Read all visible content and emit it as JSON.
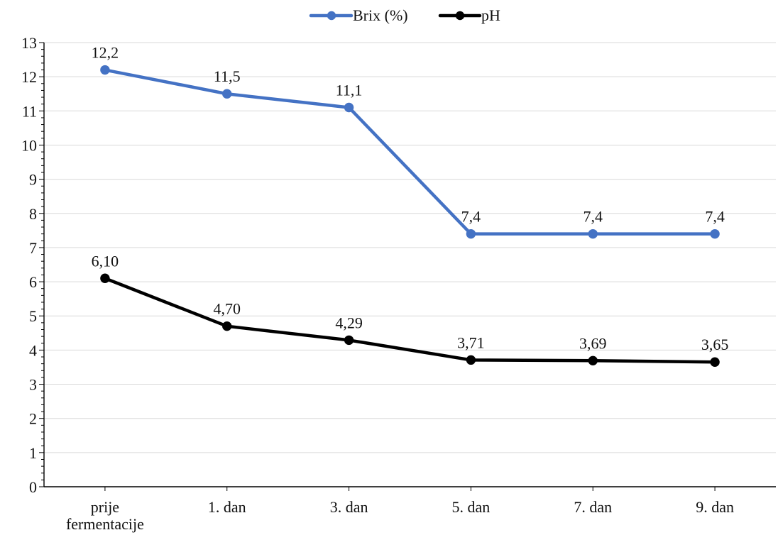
{
  "chart_data": {
    "type": "line",
    "categories": [
      "prije fermentacije",
      "1. dan",
      "3. dan",
      "5. dan",
      "7. dan",
      "9. dan"
    ],
    "category_lines": [
      [
        "prije",
        "fermentacije"
      ],
      [
        "1. dan"
      ],
      [
        "3. dan"
      ],
      [
        "5. dan"
      ],
      [
        "7. dan"
      ],
      [
        "9. dan"
      ]
    ],
    "series": [
      {
        "name": "Brix (%)",
        "color": "#4472C4",
        "values": [
          12.2,
          11.5,
          11.1,
          7.4,
          7.4,
          7.4
        ],
        "labels": [
          "12,2",
          "11,5",
          "11,1",
          "7,4",
          "7,4",
          "7,4"
        ]
      },
      {
        "name": "pH",
        "color": "#000000",
        "values": [
          6.1,
          4.7,
          4.29,
          3.71,
          3.69,
          3.65
        ],
        "labels": [
          "6,10",
          "4,70",
          "4,29",
          "3,71",
          "3,69",
          "3,65"
        ]
      }
    ],
    "ylim": [
      0,
      13
    ],
    "yticks": [
      0,
      1,
      2,
      3,
      4,
      5,
      6,
      7,
      8,
      9,
      10,
      11,
      12,
      13
    ],
    "grid": true,
    "legend_position": "top-center",
    "gridline_color": "#d9d9d9",
    "axis_color": "#000000",
    "text_color": "#111111"
  }
}
